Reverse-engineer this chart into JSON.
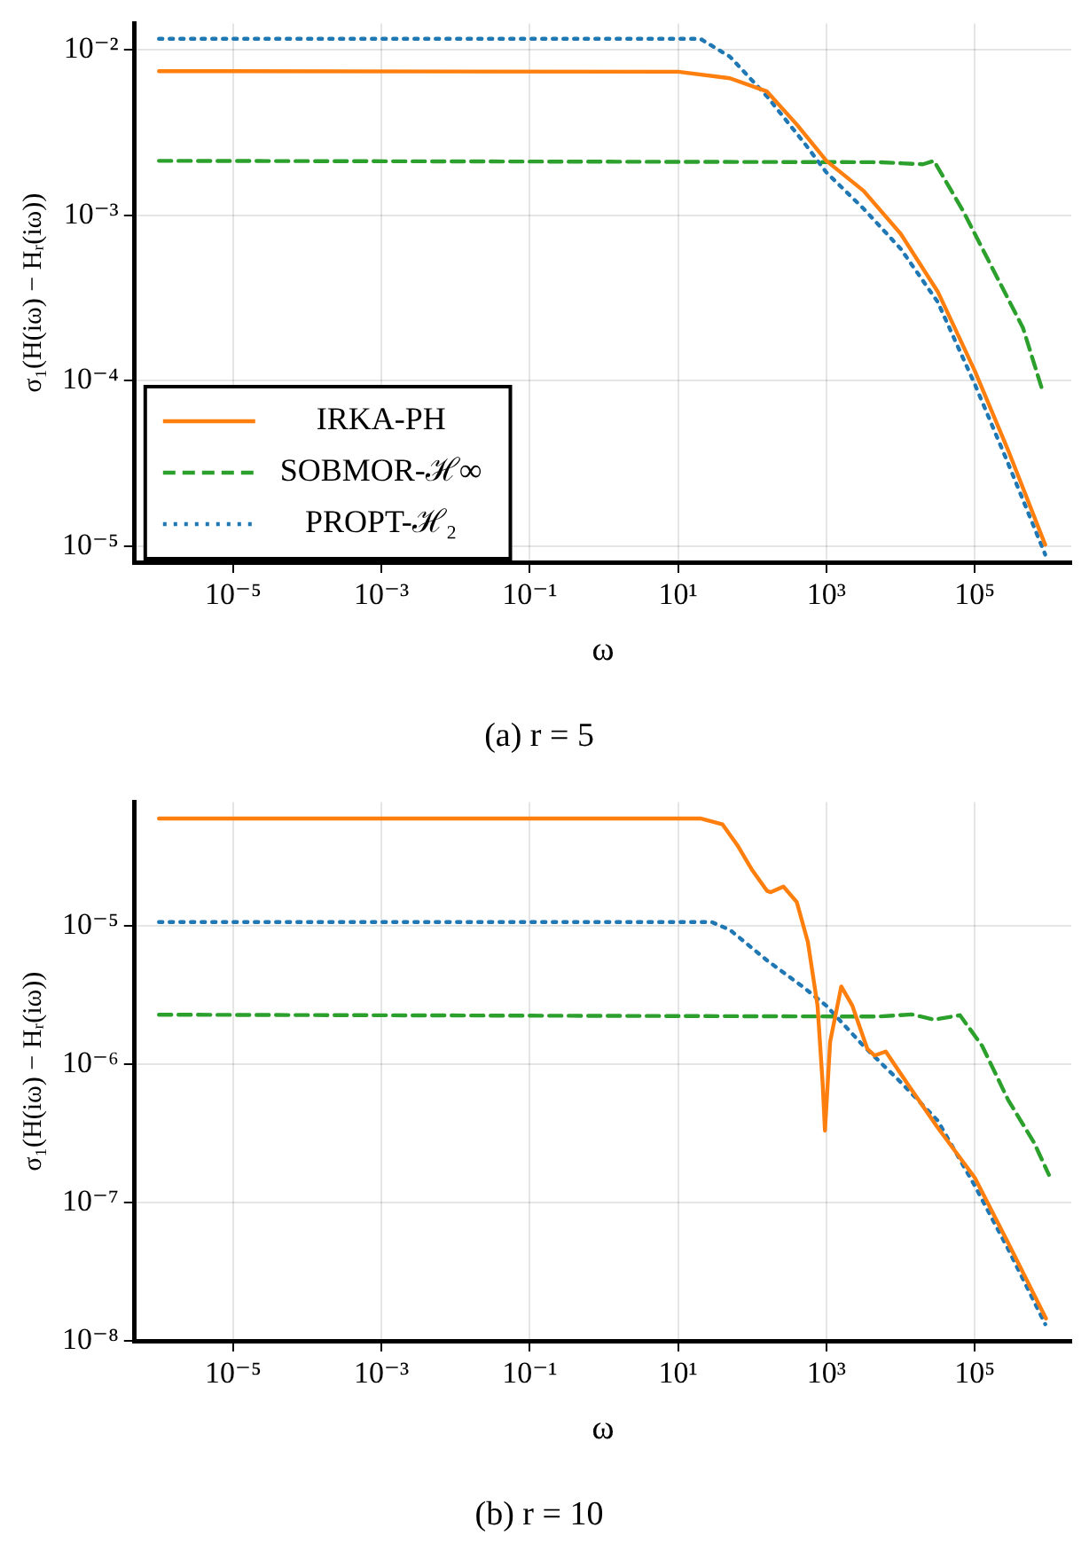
{
  "chart_data": [
    {
      "type": "line",
      "title": "(a) r = 5",
      "xlabel": "ω",
      "ylabel": "σ₁(H(iω) − Hᵣ(iω))",
      "log": "xy",
      "grid": true,
      "legend": "bottom left",
      "xlim": [
        4.7e-07,
        2000000.0
      ],
      "ylim": [
        8e-06,
        0.0145
      ],
      "xticks": [
        {
          "value": 1e-05,
          "label": "10⁻⁵"
        },
        {
          "value": 0.001,
          "label": "10⁻³"
        },
        {
          "value": 0.1,
          "label": "10⁻¹"
        },
        {
          "value": 10,
          "label": "10¹"
        },
        {
          "value": 1000,
          "label": "10³"
        },
        {
          "value": 100000,
          "label": "10⁵"
        }
      ],
      "yticks": [
        {
          "value": 1e-05,
          "label": "10⁻⁵"
        },
        {
          "value": 0.0001,
          "label": "10⁻⁴"
        },
        {
          "value": 0.001,
          "label": "10⁻³"
        },
        {
          "value": 0.01,
          "label": "10⁻²"
        }
      ],
      "series": [
        {
          "name": "IRKA-PH",
          "color": "#ff7f0e",
          "line_style": "solid",
          "x": [
            1e-06,
            10,
            50,
            158,
            398,
            1000,
            3160,
            10000,
            31600,
            100000,
            282000,
            891000
          ],
          "values": [
            0.00746,
            0.0074,
            0.00676,
            0.00562,
            0.00355,
            0.00214,
            0.00141,
            0.000776,
            0.000347,
            0.000115,
            3.8e-05,
            1.02e-05
          ]
        },
        {
          "name": "SOBMOR-ℋ∞",
          "color": "#2ca02c",
          "line_style": "dashed",
          "x": [
            1e-06,
            5010,
            19950,
            28180,
            70800,
            177800,
            446700,
            794000
          ],
          "values": [
            0.00214,
            0.0021,
            0.00204,
            0.00214,
            0.00105,
            0.000468,
            0.000209,
            9.12e-05
          ]
        },
        {
          "name": "PROPT-ℋ₂",
          "color": "#1f77b4",
          "line_style": "dotted",
          "x": [
            1e-06,
            20,
            50,
            158,
            501,
            1000,
            3160,
            10000,
            31600,
            100000,
            282000,
            891000
          ],
          "values": [
            0.0117,
            0.0117,
            0.00912,
            0.00525,
            0.00275,
            0.00182,
            0.0011,
            0.00063,
            0.0003,
            9.55e-05,
            3.16e-05,
            8.9e-06
          ]
        }
      ]
    },
    {
      "type": "line",
      "title": "(b) r = 10",
      "xlabel": "ω",
      "ylabel": "σ₁(H(iω) − Hᵣ(iω))",
      "log": "xy",
      "grid": true,
      "xlim": [
        4.7e-07,
        2000000.0
      ],
      "ylim": [
        1e-08,
        7.8e-05
      ],
      "xticks": [
        {
          "value": 1e-05,
          "label": "10⁻⁵"
        },
        {
          "value": 0.001,
          "label": "10⁻³"
        },
        {
          "value": 0.1,
          "label": "10⁻¹"
        },
        {
          "value": 10,
          "label": "10¹"
        },
        {
          "value": 1000,
          "label": "10³"
        },
        {
          "value": 100000,
          "label": "10⁵"
        }
      ],
      "yticks": [
        {
          "value": 1e-08,
          "label": "10⁻⁸"
        },
        {
          "value": 1e-07,
          "label": "10⁻⁷"
        },
        {
          "value": 1e-06,
          "label": "10⁻⁶"
        },
        {
          "value": 1e-05,
          "label": "10⁻⁵"
        }
      ],
      "series": [
        {
          "color": "#ff7f0e",
          "line_style": "solid",
          "x": [
            1e-06,
            20,
            39.8,
            63.1,
            100,
            158,
            178,
            263,
            398,
            562,
            759,
            891,
            955,
            1122,
            1585,
            2239,
            3548,
            4467,
            6310,
            12590,
            31620,
            100000,
            281800,
            912000
          ],
          "values": [
            5.93e-05,
            5.93e-05,
            5.37e-05,
            3.8e-05,
            2.51e-05,
            1.78e-05,
            1.74e-05,
            1.91e-05,
            1.48e-05,
            7.6e-06,
            2.63e-06,
            7.1e-07,
            3.3e-07,
            1.45e-06,
            3.63e-06,
            2.63e-06,
            1.29e-06,
            1.15e-06,
            1.23e-06,
            7.1e-07,
            3.47e-07,
            1.51e-07,
            5.1e-08,
            1.45e-08
          ]
        },
        {
          "color": "#2ca02c",
          "line_style": "dashed",
          "x": [
            1e-06,
            5010,
            14130,
            28180,
            63100,
            125900,
            281800,
            631000,
            1000000
          ],
          "values": [
            2.27e-06,
            2.2e-06,
            2.28e-06,
            2.09e-06,
            2.25e-06,
            1.35e-06,
            5.5e-07,
            2.7e-07,
            1.58e-07
          ]
        },
        {
          "color": "#1f77b4",
          "line_style": "dotted",
          "x": [
            1e-06,
            28.2,
            50,
            158,
            501,
            1000,
            3160,
            10000,
            31600,
            100000,
            282000,
            891000
          ],
          "values": [
            1.06e-05,
            1.06e-05,
            9.3e-06,
            5.6e-06,
            3.55e-06,
            2.63e-06,
            1.35e-06,
            7.4e-07,
            3.9e-07,
            1.32e-07,
            4.6e-08,
            1.32e-08
          ]
        }
      ]
    }
  ]
}
